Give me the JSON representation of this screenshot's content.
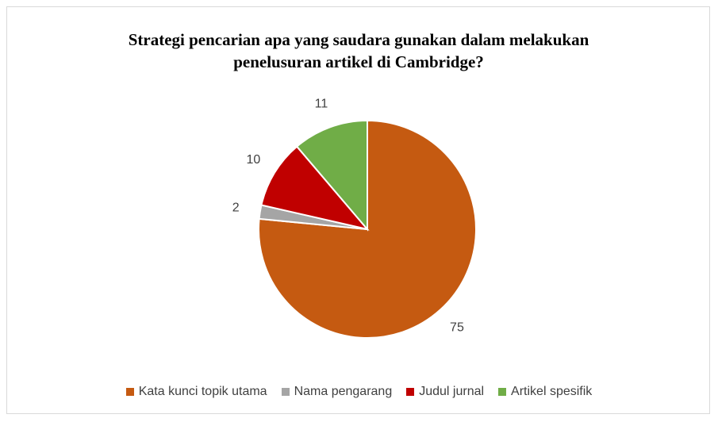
{
  "chart_data": {
    "type": "pie",
    "title": "Strategi pencarian apa yang saudara gunakan dalam melakukan penelusuran artikel di Cambridge?",
    "categories": [
      "Kata kunci topik utama",
      "Nama pengarang",
      "Judul jurnal",
      "Artikel spesifik"
    ],
    "values": [
      75,
      2,
      10,
      11
    ],
    "colors": [
      "#c55a11",
      "#a5a5a5",
      "#c00000",
      "#70ad47"
    ],
    "legend": "bottom"
  }
}
